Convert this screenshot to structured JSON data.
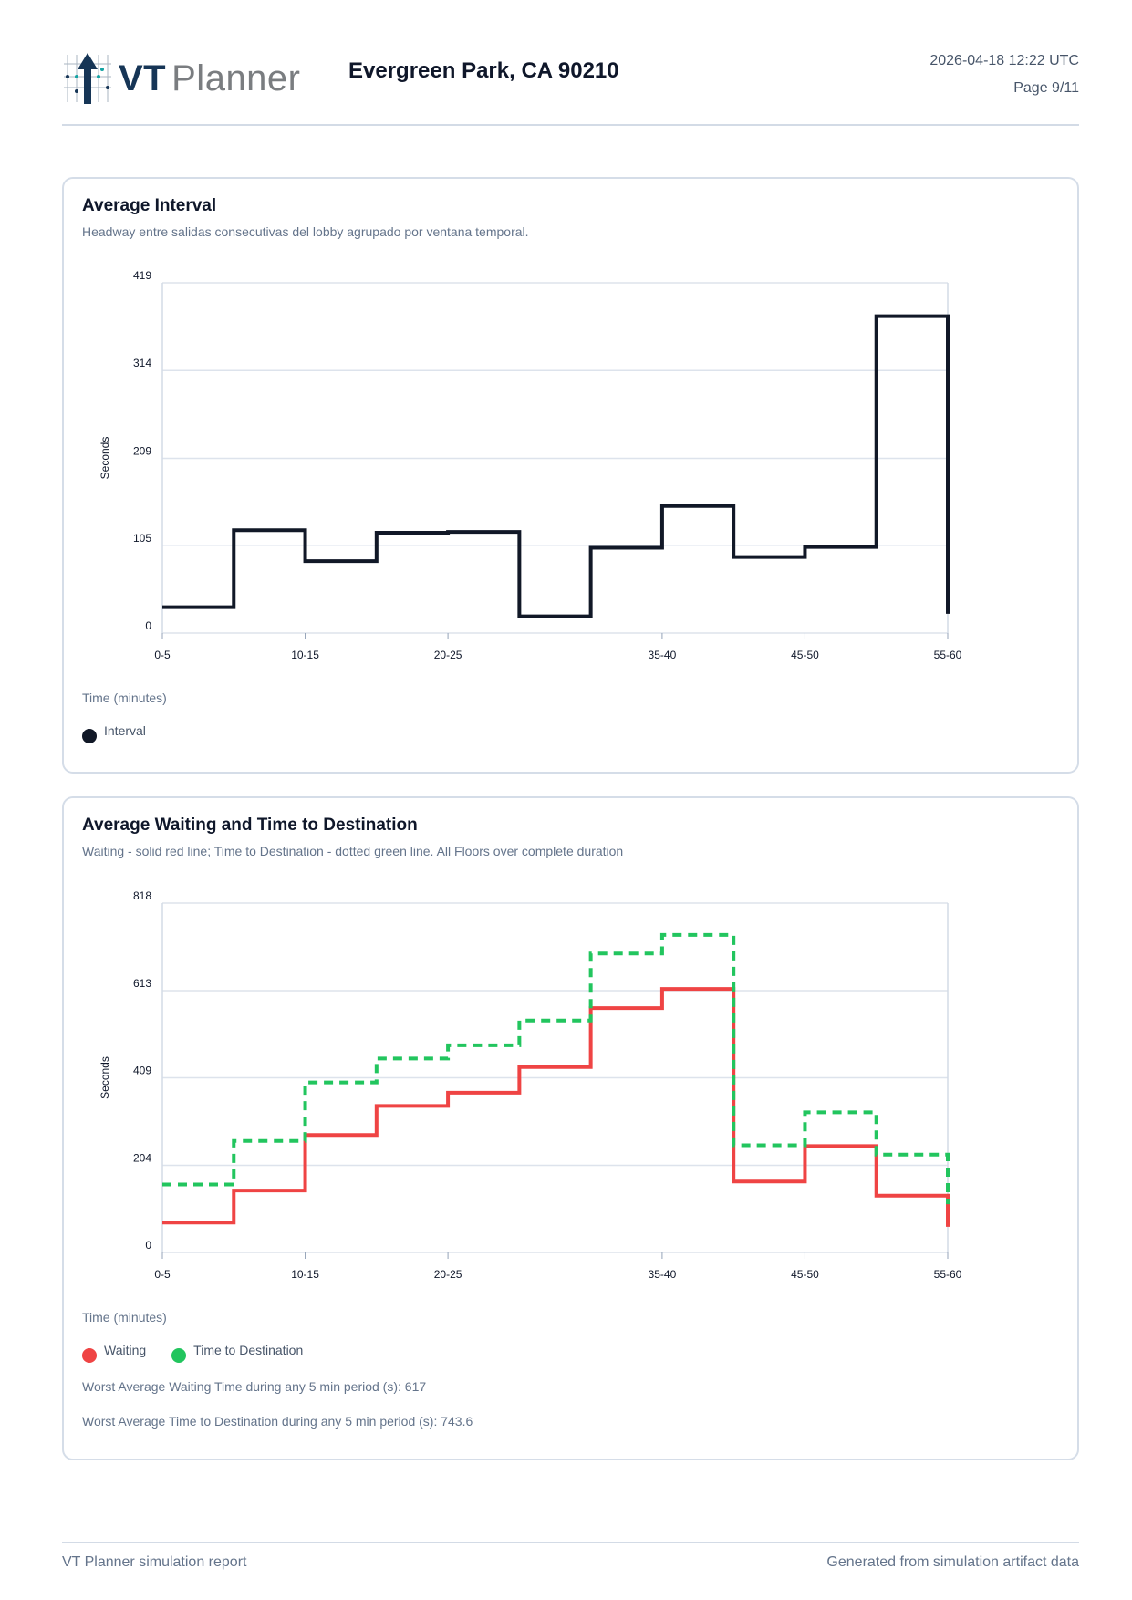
{
  "header": {
    "logo_text_1": "VT",
    "logo_text_2": "Planner",
    "title": "Evergreen Park, CA 90210",
    "timestamp": "2026-04-18 12:22 UTC",
    "page": "Page 9/11"
  },
  "colors": {
    "interval": "#111827",
    "waiting": "#ef4444",
    "destination": "#22c55e",
    "grid": "#dde3ec"
  },
  "chart_data": [
    {
      "type": "line",
      "step": "post",
      "title": "Average Interval",
      "subtitle": "Headway entre salidas consecutivas del lobby agrupado por ventana temporal.",
      "xlabel": "Time (minutes)",
      "ylabel": "Seconds",
      "categories": [
        "0-5",
        "5-10",
        "10-15",
        "15-20",
        "20-25",
        "25-30",
        "30-35",
        "35-40",
        "40-45",
        "45-50",
        "50-55",
        "55-60"
      ],
      "x_tick_labels": [
        "0-5",
        "10-15",
        "20-25",
        "35-40",
        "45-50",
        "55-60"
      ],
      "x_tick_index": [
        0,
        2,
        4,
        7,
        9,
        11
      ],
      "y_ticks": [
        0,
        105,
        209,
        314,
        419
      ],
      "ylim": [
        0,
        419
      ],
      "grid": true,
      "legend": "bottom-left",
      "series": [
        {
          "name": "Interval",
          "color": "#111827",
          "dashed": false,
          "values": [
            31,
            123,
            86,
            120,
            121,
            20,
            102,
            152,
            91,
            103,
            379,
            23
          ]
        }
      ]
    },
    {
      "type": "line",
      "step": "post",
      "title": "Average Waiting and Time to Destination",
      "subtitle": "Waiting - solid red line; Time to Destination - dotted green line. All Floors over complete duration",
      "xlabel": "Time (minutes)",
      "ylabel": "Seconds",
      "categories": [
        "0-5",
        "5-10",
        "10-15",
        "15-20",
        "20-25",
        "25-30",
        "30-35",
        "35-40",
        "40-45",
        "45-50",
        "50-55",
        "55-60"
      ],
      "x_tick_labels": [
        "0-5",
        "10-15",
        "20-25",
        "35-40",
        "45-50",
        "55-60"
      ],
      "x_tick_index": [
        0,
        2,
        4,
        7,
        9,
        11
      ],
      "y_ticks": [
        0,
        204,
        409,
        613,
        818
      ],
      "ylim": [
        0,
        818
      ],
      "grid": true,
      "legend": "bottom-left",
      "series": [
        {
          "name": "Waiting",
          "color": "#ef4444",
          "dashed": false,
          "values": [
            70,
            145,
            275,
            343,
            374,
            434,
            572,
            617,
            166,
            249,
            133,
            60
          ]
        },
        {
          "name": "Time to Destination",
          "color": "#22c55e",
          "dashed": true,
          "values": [
            159,
            261,
            398,
            454,
            485,
            543,
            700,
            743.6,
            251,
            328,
            229,
            113
          ]
        }
      ],
      "notes": [
        "Worst Average Waiting Time during any 5 min period (s): 617",
        "Worst Average Time to Destination during any 5 min period (s): 743.6"
      ]
    }
  ],
  "footer": {
    "left": "VT Planner simulation report",
    "right": "Generated from simulation artifact data"
  }
}
